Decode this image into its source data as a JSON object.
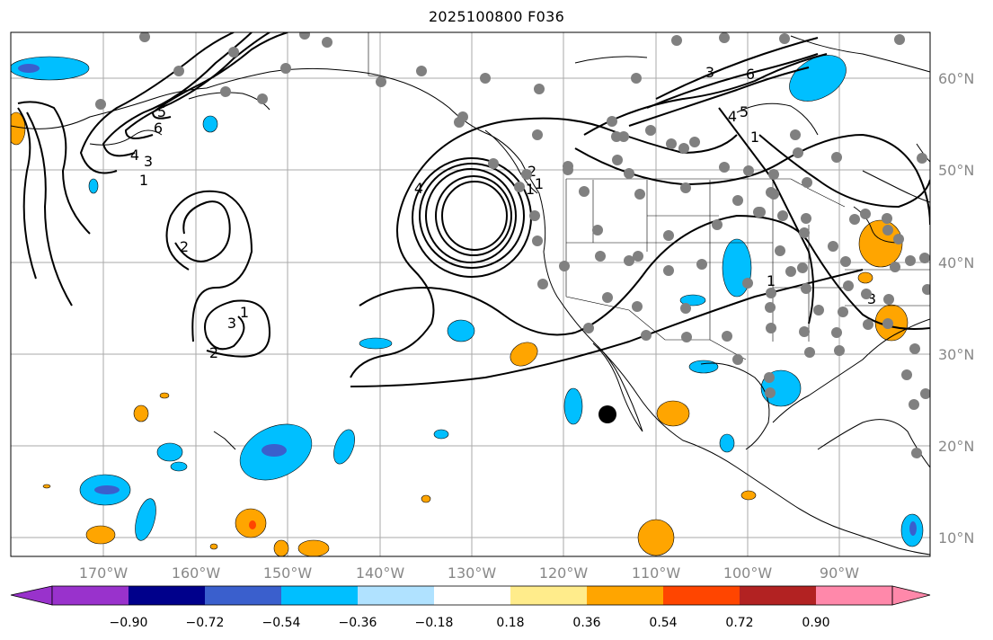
{
  "title": "2025100800 F036",
  "map": {
    "lon_labels": [
      "170°W",
      "160°W",
      "150°W",
      "140°W",
      "130°W",
      "120°W",
      "110°W",
      "100°W",
      "90°W"
    ],
    "lat_labels": [
      "60°N",
      "50°N",
      "40°N",
      "30°N",
      "20°N",
      "10°N"
    ],
    "lon_range": [
      -180,
      -80
    ],
    "lat_range": [
      8,
      65
    ],
    "label_color": "#888888",
    "contour_labels": [
      "5",
      "6",
      "4",
      "3",
      "2",
      "1",
      "1",
      "2",
      "3",
      "1",
      "4",
      "2",
      "1",
      "3",
      "4",
      "3",
      "6",
      "5",
      "1",
      "1"
    ]
  },
  "colorbar": {
    "ticks": [
      "−0.90",
      "−0.72",
      "−0.54",
      "−0.36",
      "−0.18",
      "0.18",
      "0.36",
      "0.54",
      "0.72",
      "0.90"
    ],
    "colors": [
      "#9932cc",
      "#00008b",
      "#3a5fcd",
      "#00bfff",
      "#b0e2ff",
      "#ffffff",
      "#ffec8b",
      "#ffa500",
      "#ff4500",
      "#b22222",
      "#ff88aa"
    ]
  },
  "legend_colors": {
    "coast": "#000000",
    "grid": "#aaaaaa",
    "station_dot": "#808080"
  }
}
